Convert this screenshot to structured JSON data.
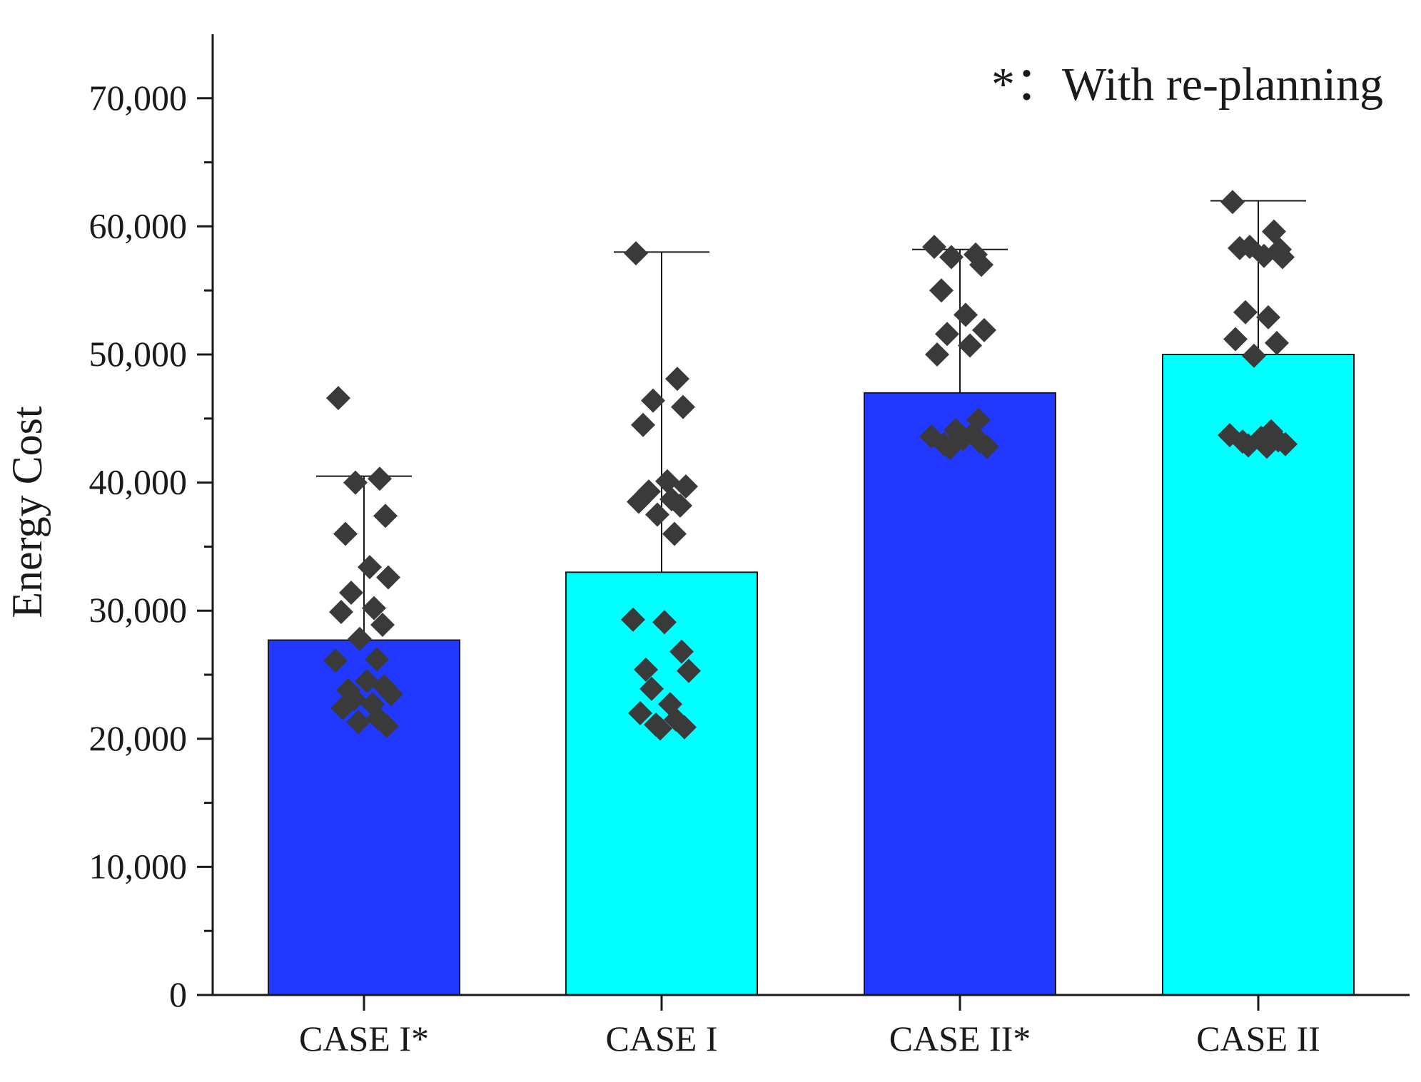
{
  "chart_data": {
    "type": "bar",
    "title": "",
    "xlabel": "",
    "ylabel": "Energy Cost",
    "annotation": "*：With re-planning",
    "ylim": [
      0,
      75000
    ],
    "yticks": [
      0,
      10000,
      20000,
      30000,
      40000,
      50000,
      60000,
      70000
    ],
    "ytick_labels": [
      "0",
      "10,000",
      "20,000",
      "30,000",
      "40,000",
      "50,000",
      "60,000",
      "70,000"
    ],
    "categories": [
      "CASE I*",
      "CASE I",
      "CASE II*",
      "CASE II"
    ],
    "values": [
      27700,
      33000,
      47000,
      50000
    ],
    "error_upper": [
      40500,
      58000,
      58200,
      62000
    ],
    "colors": [
      "#2038FF",
      "#00FFFF",
      "#2038FF",
      "#00FFFF"
    ],
    "marker_color": "#3a3a3a",
    "points": [
      [
        46600,
        40300,
        40000,
        37400,
        36000,
        33400,
        32600,
        31400,
        30200,
        29900,
        28900,
        27800,
        26200,
        26100,
        24500,
        24100,
        23800,
        23500,
        23100,
        22700,
        22400,
        21600,
        21300,
        21000
      ],
      [
        57900,
        48100,
        46400,
        45900,
        44500,
        40100,
        39700,
        39300,
        38700,
        38500,
        38200,
        37500,
        36000,
        29300,
        29100,
        26800,
        25400,
        25300,
        23900,
        22700,
        22000,
        21500,
        21100,
        20900,
        20800
      ],
      [
        58400,
        57800,
        57600,
        57000,
        55000,
        53100,
        51900,
        51600,
        50700,
        50000,
        44900,
        44100,
        43800,
        43600,
        43400,
        43200,
        43000,
        42800,
        42700
      ],
      [
        61900,
        59600,
        58400,
        58200,
        58300,
        57700,
        57600,
        53300,
        52900,
        51200,
        50900,
        49900,
        44000,
        43700,
        43500,
        43300,
        43200,
        43000,
        42900,
        42800
      ]
    ]
  }
}
